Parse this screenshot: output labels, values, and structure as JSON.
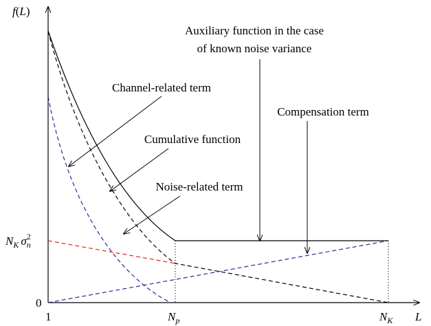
{
  "axes": {
    "y_label": {
      "f": "f",
      "open": "(",
      "var": "L",
      "close": ")"
    },
    "x_label": "L",
    "origin_y": "0",
    "origin_x": "1",
    "np": {
      "base": "N",
      "sub": "p"
    },
    "nk": {
      "base": "N",
      "sub": "K"
    },
    "nk_sigma": {
      "base": "N",
      "sub": "K",
      "sigma": "σ",
      "sigma_sub": "n",
      "sup": "2"
    }
  },
  "annotations": {
    "auxiliary": [
      "Auxiliary function in the case",
      "of known noise variance"
    ],
    "channel": "Channel-related term",
    "compensation": "Compensation term",
    "cumulative": "Cumulative function",
    "noise": "Noise-related term"
  }
}
